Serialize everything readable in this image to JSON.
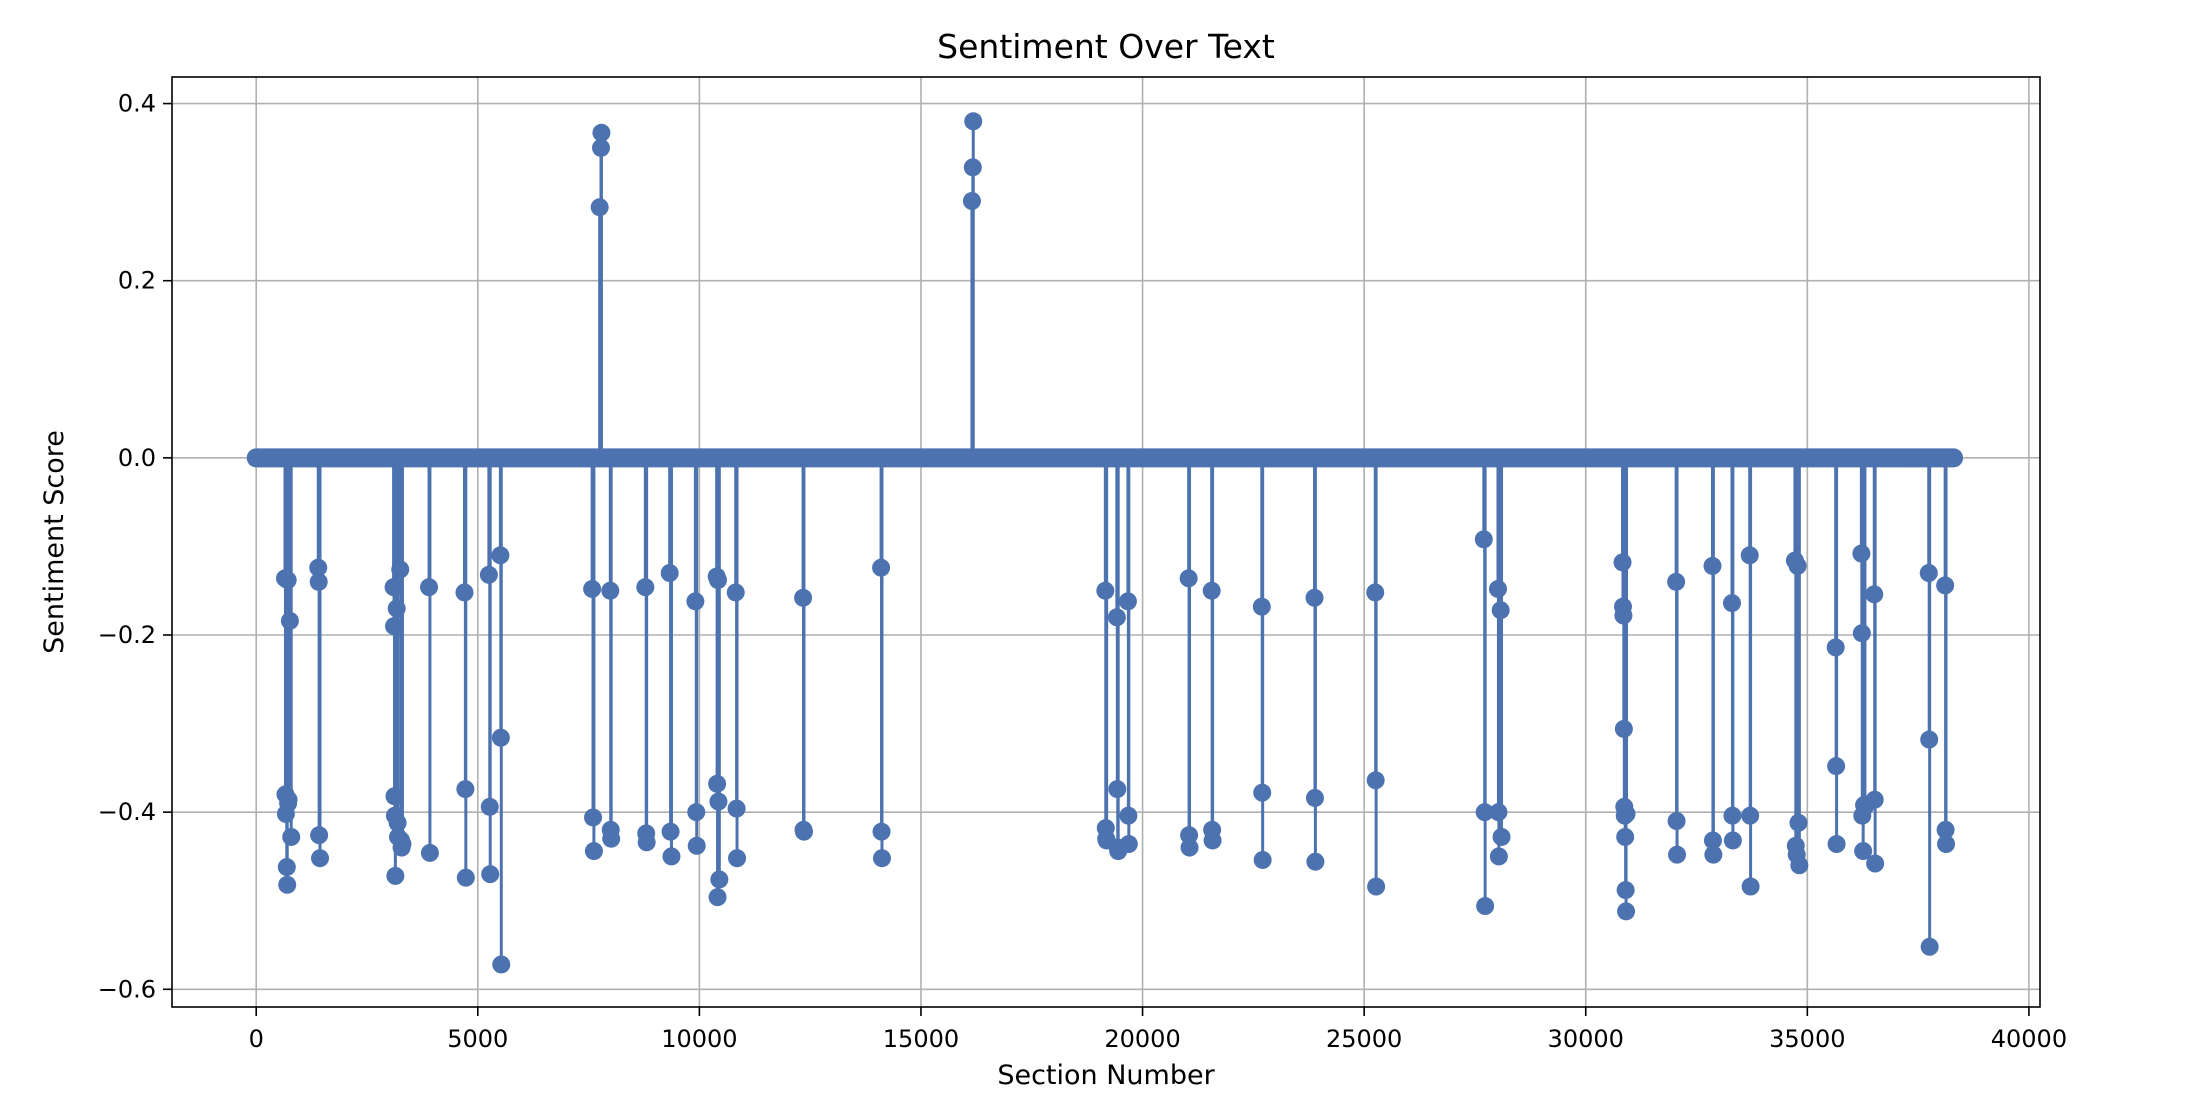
{
  "chart_data": {
    "type": "scatter",
    "style": "stem",
    "title": "Sentiment Over Text",
    "xlabel": "Section Number",
    "ylabel": "Sentiment Score",
    "xlim": [
      -1900,
      40250
    ],
    "ylim": [
      -0.62,
      0.43
    ],
    "xticks": [
      0,
      5000,
      10000,
      15000,
      20000,
      25000,
      30000,
      35000,
      40000
    ],
    "yticks": [
      -0.6,
      -0.4,
      -0.2,
      0.0,
      0.2,
      0.4
    ],
    "xtick_labels": [
      "0",
      "5000",
      "10000",
      "15000",
      "20000",
      "25000",
      "30000",
      "35000",
      "40000"
    ],
    "ytick_labels": [
      "−0.6",
      "−0.4",
      "−0.2",
      "0.0",
      "0.2",
      "0.4"
    ],
    "grid": true,
    "color": "#4c72b0",
    "baseline_range": [
      0,
      38300
    ],
    "x": [
      7750,
      7780,
      7790,
      16150,
      16170,
      16180,
      650,
      660,
      670,
      690,
      700,
      710,
      720,
      730,
      760,
      790,
      1400,
      1410,
      1420,
      1440,
      3100,
      3110,
      3120,
      3130,
      3140,
      3170,
      3190,
      3200,
      3250,
      3270,
      3280,
      3300,
      3900,
      3920,
      4700,
      4720,
      4730,
      5250,
      5270,
      5280,
      5510,
      5520,
      5530,
      7580,
      7600,
      7620,
      7990,
      8000,
      8010,
      8780,
      8800,
      8810,
      9330,
      9350,
      9370,
      9910,
      9930,
      9940,
      10390,
      10400,
      10410,
      10420,
      10430,
      10450,
      10820,
      10840,
      10850,
      12340,
      12350,
      12360,
      14100,
      14110,
      14120,
      19160,
      19170,
      19180,
      19190,
      19420,
      19430,
      19440,
      19450,
      19670,
      19680,
      19690,
      21040,
      21050,
      21060,
      21560,
      21570,
      21580,
      22690,
      22700,
      22710,
      23880,
      23890,
      23900,
      25250,
      25260,
      25270,
      27700,
      27720,
      27730,
      28020,
      28030,
      28040,
      28080,
      28100,
      30830,
      30840,
      30850,
      30860,
      30870,
      30880,
      30890,
      30900,
      30910,
      30920,
      32040,
      32050,
      32060,
      32860,
      32870,
      32880,
      33300,
      33310,
      33320,
      33700,
      33710,
      33720,
      34720,
      34740,
      34760,
      34780,
      34800,
      34820,
      35640,
      35650,
      35660,
      36220,
      36230,
      36240,
      36260,
      36280,
      36300,
      36510,
      36520,
      36530,
      37740,
      37750,
      37760,
      38110,
      38120,
      38130
    ],
    "y": [
      0.283,
      0.35,
      0.367,
      0.29,
      0.328,
      0.38,
      -0.136,
      -0.38,
      -0.402,
      -0.462,
      -0.482,
      -0.138,
      -0.39,
      -0.386,
      -0.184,
      -0.428,
      -0.124,
      -0.14,
      -0.426,
      -0.452,
      -0.146,
      -0.19,
      -0.382,
      -0.404,
      -0.472,
      -0.17,
      -0.412,
      -0.428,
      -0.126,
      -0.432,
      -0.44,
      -0.436,
      -0.146,
      -0.446,
      -0.152,
      -0.374,
      -0.474,
      -0.132,
      -0.394,
      -0.47,
      -0.11,
      -0.316,
      -0.572,
      -0.148,
      -0.406,
      -0.444,
      -0.15,
      -0.42,
      -0.43,
      -0.146,
      -0.424,
      -0.434,
      -0.13,
      -0.422,
      -0.45,
      -0.162,
      -0.4,
      -0.438,
      -0.134,
      -0.368,
      -0.496,
      -0.138,
      -0.388,
      -0.476,
      -0.152,
      -0.396,
      -0.452,
      -0.158,
      -0.42,
      -0.422,
      -0.124,
      -0.422,
      -0.452,
      -0.15,
      -0.418,
      -0.43,
      -0.432,
      -0.18,
      -0.374,
      -0.44,
      -0.444,
      -0.162,
      -0.404,
      -0.436,
      -0.136,
      -0.426,
      -0.44,
      -0.15,
      -0.42,
      -0.432,
      -0.168,
      -0.378,
      -0.454,
      -0.158,
      -0.384,
      -0.456,
      -0.152,
      -0.364,
      -0.484,
      -0.092,
      -0.4,
      -0.506,
      -0.148,
      -0.4,
      -0.45,
      -0.172,
      -0.428,
      -0.118,
      -0.168,
      -0.178,
      -0.306,
      -0.394,
      -0.404,
      -0.428,
      -0.488,
      -0.512,
      -0.402,
      -0.14,
      -0.41,
      -0.448,
      -0.122,
      -0.432,
      -0.448,
      -0.164,
      -0.404,
      -0.432,
      -0.11,
      -0.404,
      -0.484,
      -0.116,
      -0.438,
      -0.448,
      -0.122,
      -0.412,
      -0.46,
      -0.214,
      -0.348,
      -0.436,
      -0.108,
      -0.198,
      -0.404,
      -0.444,
      -0.392,
      -0.394,
      -0.154,
      -0.386,
      -0.458,
      -0.13,
      -0.318,
      -0.552,
      -0.144,
      -0.42,
      -0.436
    ]
  }
}
